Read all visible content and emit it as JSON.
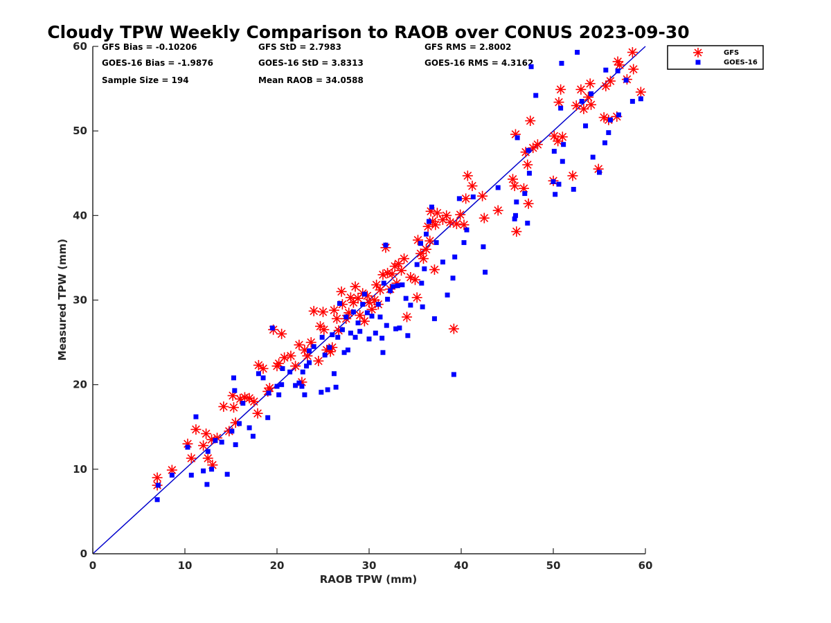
{
  "chart_data": {
    "type": "scatter",
    "title": "Cloudy TPW Weekly Comparison to RAOB over CONUS 2023-09-30",
    "xlabel": "RAOB TPW (mm)",
    "ylabel": "Measured TPW (mm)",
    "xlim": [
      0,
      60
    ],
    "ylim": [
      0,
      60
    ],
    "xticks": [
      "0",
      "10",
      "20",
      "30",
      "40",
      "50",
      "60"
    ],
    "yticks": [
      "0",
      "10",
      "20",
      "30",
      "40",
      "50",
      "60"
    ],
    "grid": false,
    "legend_position": "outside-top-right",
    "reference_line": {
      "type": "one-to-one",
      "color": "#0000cc"
    },
    "stats": [
      {
        "text": "GFS Bias = -0.10206"
      },
      {
        "text": "GFS StD = 2.7983"
      },
      {
        "text": "GFS RMS = 2.8002"
      },
      {
        "text": "GOES-16 Bias = -1.9876"
      },
      {
        "text": "GOES-16 StD = 3.8313"
      },
      {
        "text": "GOES-16 RMS = 4.3162"
      },
      {
        "text": "Sample Size = 194"
      },
      {
        "text": "Mean RAOB = 34.0588"
      }
    ],
    "series": [
      {
        "name": "GFS",
        "marker": "asterisk",
        "color": "#ff0000",
        "points": [
          [
            7.0,
            9.0
          ],
          [
            7.0,
            8.1
          ],
          [
            8.6,
            9.9
          ],
          [
            10.3,
            13.0
          ],
          [
            10.7,
            11.3
          ],
          [
            11.2,
            14.7
          ],
          [
            12.0,
            12.8
          ],
          [
            12.3,
            14.2
          ],
          [
            12.5,
            11.3
          ],
          [
            12.9,
            13.5
          ],
          [
            13.0,
            10.5
          ],
          [
            13.5,
            13.7
          ],
          [
            14.2,
            17.4
          ],
          [
            14.8,
            14.5
          ],
          [
            15.2,
            18.7
          ],
          [
            15.3,
            17.3
          ],
          [
            15.5,
            15.5
          ],
          [
            16.0,
            18.3
          ],
          [
            16.5,
            18.5
          ],
          [
            17.0,
            18.4
          ],
          [
            17.5,
            18.0
          ],
          [
            17.9,
            16.6
          ],
          [
            18.0,
            22.3
          ],
          [
            18.5,
            21.9
          ],
          [
            19.0,
            19.2
          ],
          [
            19.2,
            19.6
          ],
          [
            19.6,
            26.5
          ],
          [
            20.0,
            22.2
          ],
          [
            20.2,
            22.5
          ],
          [
            20.5,
            26.0
          ],
          [
            20.8,
            23.2
          ],
          [
            21.5,
            23.4
          ],
          [
            22.0,
            22.2
          ],
          [
            22.4,
            24.7
          ],
          [
            22.7,
            20.3
          ],
          [
            23.0,
            24.1
          ],
          [
            23.3,
            23.4
          ],
          [
            23.7,
            25.0
          ],
          [
            24.0,
            28.7
          ],
          [
            24.5,
            22.8
          ],
          [
            24.7,
            26.9
          ],
          [
            25.0,
            28.6
          ],
          [
            25.1,
            26.5
          ],
          [
            25.4,
            24.1
          ],
          [
            25.8,
            23.9
          ],
          [
            26.0,
            24.4
          ],
          [
            26.2,
            28.8
          ],
          [
            26.5,
            27.8
          ],
          [
            26.7,
            26.4
          ],
          [
            27.0,
            31.0
          ],
          [
            27.1,
            29.5
          ],
          [
            27.5,
            27.8
          ],
          [
            27.8,
            28.5
          ],
          [
            28.0,
            30.3
          ],
          [
            28.3,
            29.7
          ],
          [
            28.5,
            31.6
          ],
          [
            28.8,
            30.2
          ],
          [
            29.0,
            28.2
          ],
          [
            29.3,
            30.8
          ],
          [
            29.5,
            27.5
          ],
          [
            29.8,
            30.5
          ],
          [
            30.0,
            29.7
          ],
          [
            30.3,
            28.9
          ],
          [
            30.6,
            30.0
          ],
          [
            30.8,
            31.8
          ],
          [
            31.0,
            29.5
          ],
          [
            31.2,
            31.2
          ],
          [
            31.5,
            33.0
          ],
          [
            31.8,
            36.2
          ],
          [
            32.0,
            33.2
          ],
          [
            32.3,
            31.3
          ],
          [
            32.5,
            33.1
          ],
          [
            32.8,
            34.0
          ],
          [
            33.0,
            32.0
          ],
          [
            33.2,
            34.3
          ],
          [
            33.5,
            33.5
          ],
          [
            33.8,
            34.9
          ],
          [
            34.1,
            28.0
          ],
          [
            34.5,
            32.7
          ],
          [
            35.0,
            32.4
          ],
          [
            35.2,
            30.3
          ],
          [
            35.3,
            37.1
          ],
          [
            35.6,
            35.5
          ],
          [
            35.9,
            34.9
          ],
          [
            36.2,
            36.0
          ],
          [
            36.4,
            38.7
          ],
          [
            36.6,
            37.0
          ],
          [
            36.7,
            40.5
          ],
          [
            36.9,
            39.3
          ],
          [
            37.1,
            33.6
          ],
          [
            37.2,
            38.9
          ],
          [
            37.4,
            40.3
          ],
          [
            38.0,
            39.5
          ],
          [
            38.4,
            40.0
          ],
          [
            38.8,
            39.2
          ],
          [
            39.2,
            26.6
          ],
          [
            39.5,
            39.0
          ],
          [
            39.9,
            40.1
          ],
          [
            40.3,
            38.9
          ],
          [
            40.5,
            42.0
          ],
          [
            40.7,
            44.7
          ],
          [
            41.2,
            43.5
          ],
          [
            42.3,
            42.3
          ],
          [
            42.5,
            39.7
          ],
          [
            44.0,
            40.6
          ],
          [
            45.6,
            44.3
          ],
          [
            45.8,
            43.5
          ],
          [
            45.9,
            49.6
          ],
          [
            46.0,
            38.1
          ],
          [
            46.8,
            43.2
          ],
          [
            47.0,
            47.5
          ],
          [
            47.2,
            46.0
          ],
          [
            47.3,
            41.4
          ],
          [
            47.5,
            51.2
          ],
          [
            47.8,
            48.0
          ],
          [
            48.3,
            48.4
          ],
          [
            50.0,
            44.1
          ],
          [
            50.1,
            49.4
          ],
          [
            50.5,
            48.8
          ],
          [
            50.6,
            53.4
          ],
          [
            50.8,
            54.9
          ],
          [
            51.0,
            49.3
          ],
          [
            52.1,
            44.7
          ],
          [
            52.5,
            53.0
          ],
          [
            53.0,
            54.9
          ],
          [
            53.3,
            52.6
          ],
          [
            53.8,
            54.0
          ],
          [
            54.0,
            55.6
          ],
          [
            54.1,
            53.1
          ],
          [
            54.9,
            45.5
          ],
          [
            55.5,
            51.6
          ],
          [
            55.7,
            55.3
          ],
          [
            56.0,
            51.3
          ],
          [
            56.2,
            55.9
          ],
          [
            56.9,
            51.7
          ],
          [
            57.0,
            58.2
          ],
          [
            57.2,
            57.8
          ],
          [
            58.0,
            56.1
          ],
          [
            58.6,
            59.3
          ],
          [
            58.7,
            57.3
          ],
          [
            59.5,
            54.6
          ]
        ]
      },
      {
        "name": "GOES-16",
        "marker": "square",
        "color": "#0000ff",
        "points": [
          [
            7.0,
            6.4
          ],
          [
            7.1,
            8.1
          ],
          [
            8.6,
            9.3
          ],
          [
            10.3,
            12.6
          ],
          [
            10.7,
            9.3
          ],
          [
            11.2,
            16.2
          ],
          [
            12.0,
            9.8
          ],
          [
            12.4,
            8.2
          ],
          [
            12.5,
            12.1
          ],
          [
            12.9,
            10.0
          ],
          [
            13.3,
            13.4
          ],
          [
            14.0,
            13.2
          ],
          [
            14.6,
            9.4
          ],
          [
            15.1,
            14.5
          ],
          [
            15.3,
            20.8
          ],
          [
            15.4,
            19.3
          ],
          [
            15.5,
            12.9
          ],
          [
            15.9,
            15.4
          ],
          [
            16.3,
            17.8
          ],
          [
            17.0,
            14.9
          ],
          [
            17.4,
            13.9
          ],
          [
            18.0,
            21.3
          ],
          [
            18.5,
            20.8
          ],
          [
            19.0,
            16.1
          ],
          [
            19.1,
            19.0
          ],
          [
            19.5,
            26.7
          ],
          [
            20.0,
            19.8
          ],
          [
            20.2,
            18.8
          ],
          [
            20.5,
            20.0
          ],
          [
            20.6,
            21.9
          ],
          [
            21.4,
            21.5
          ],
          [
            22.0,
            19.9
          ],
          [
            22.4,
            20.2
          ],
          [
            22.7,
            19.8
          ],
          [
            22.8,
            21.5
          ],
          [
            23.0,
            18.8
          ],
          [
            23.2,
            22.2
          ],
          [
            23.5,
            24.0
          ],
          [
            23.5,
            22.6
          ],
          [
            24.0,
            24.5
          ],
          [
            24.8,
            19.1
          ],
          [
            24.9,
            25.6
          ],
          [
            25.2,
            23.5
          ],
          [
            25.5,
            19.4
          ],
          [
            25.7,
            24.4
          ],
          [
            26.0,
            25.9
          ],
          [
            26.2,
            21.3
          ],
          [
            26.4,
            19.7
          ],
          [
            26.6,
            25.6
          ],
          [
            26.8,
            29.6
          ],
          [
            27.1,
            26.5
          ],
          [
            27.3,
            23.8
          ],
          [
            27.5,
            28.0
          ],
          [
            27.7,
            24.1
          ],
          [
            28.0,
            26.1
          ],
          [
            28.3,
            28.6
          ],
          [
            28.5,
            25.6
          ],
          [
            28.8,
            27.3
          ],
          [
            29.0,
            26.3
          ],
          [
            29.3,
            29.5
          ],
          [
            29.5,
            30.7
          ],
          [
            29.8,
            28.5
          ],
          [
            30.0,
            25.4
          ],
          [
            30.3,
            28.1
          ],
          [
            30.7,
            26.1
          ],
          [
            31.0,
            29.5
          ],
          [
            31.2,
            28.0
          ],
          [
            31.4,
            25.5
          ],
          [
            31.5,
            23.8
          ],
          [
            31.6,
            32.0
          ],
          [
            31.8,
            36.5
          ],
          [
            31.9,
            27.0
          ],
          [
            32.0,
            30.1
          ],
          [
            32.3,
            31.1
          ],
          [
            32.6,
            31.6
          ],
          [
            32.9,
            26.6
          ],
          [
            33.1,
            31.7
          ],
          [
            33.3,
            26.7
          ],
          [
            33.6,
            31.8
          ],
          [
            34.0,
            30.2
          ],
          [
            34.2,
            25.8
          ],
          [
            34.5,
            29.4
          ],
          [
            35.2,
            34.2
          ],
          [
            35.6,
            36.7
          ],
          [
            35.7,
            32.0
          ],
          [
            35.8,
            29.2
          ],
          [
            36.0,
            33.7
          ],
          [
            36.2,
            37.8
          ],
          [
            36.5,
            39.3
          ],
          [
            36.8,
            41.0
          ],
          [
            37.1,
            27.8
          ],
          [
            37.3,
            36.8
          ],
          [
            38.0,
            34.5
          ],
          [
            38.5,
            30.6
          ],
          [
            39.1,
            32.6
          ],
          [
            39.2,
            21.2
          ],
          [
            39.3,
            35.1
          ],
          [
            39.8,
            42.0
          ],
          [
            40.3,
            36.8
          ],
          [
            40.6,
            38.3
          ],
          [
            41.3,
            42.2
          ],
          [
            42.4,
            36.3
          ],
          [
            42.6,
            33.3
          ],
          [
            44.0,
            43.3
          ],
          [
            45.8,
            39.6
          ],
          [
            45.9,
            40.0
          ],
          [
            46.0,
            41.6
          ],
          [
            46.1,
            49.2
          ],
          [
            46.9,
            42.6
          ],
          [
            47.2,
            39.1
          ],
          [
            47.3,
            47.7
          ],
          [
            47.4,
            45.0
          ],
          [
            47.6,
            57.6
          ],
          [
            48.1,
            54.2
          ],
          [
            50.0,
            44.0
          ],
          [
            50.1,
            47.6
          ],
          [
            50.2,
            42.5
          ],
          [
            50.6,
            43.7
          ],
          [
            50.8,
            52.7
          ],
          [
            50.9,
            58.0
          ],
          [
            51.0,
            46.4
          ],
          [
            51.1,
            48.4
          ],
          [
            52.2,
            43.1
          ],
          [
            52.6,
            59.3
          ],
          [
            53.1,
            53.5
          ],
          [
            53.5,
            50.6
          ],
          [
            54.1,
            54.4
          ],
          [
            54.3,
            46.9
          ],
          [
            55.0,
            45.1
          ],
          [
            55.6,
            48.6
          ],
          [
            55.7,
            57.2
          ],
          [
            56.0,
            49.8
          ],
          [
            56.2,
            51.3
          ],
          [
            57.0,
            57.1
          ],
          [
            57.1,
            51.9
          ],
          [
            57.9,
            56.0
          ],
          [
            58.6,
            53.5
          ],
          [
            59.5,
            53.8
          ]
        ]
      }
    ]
  }
}
